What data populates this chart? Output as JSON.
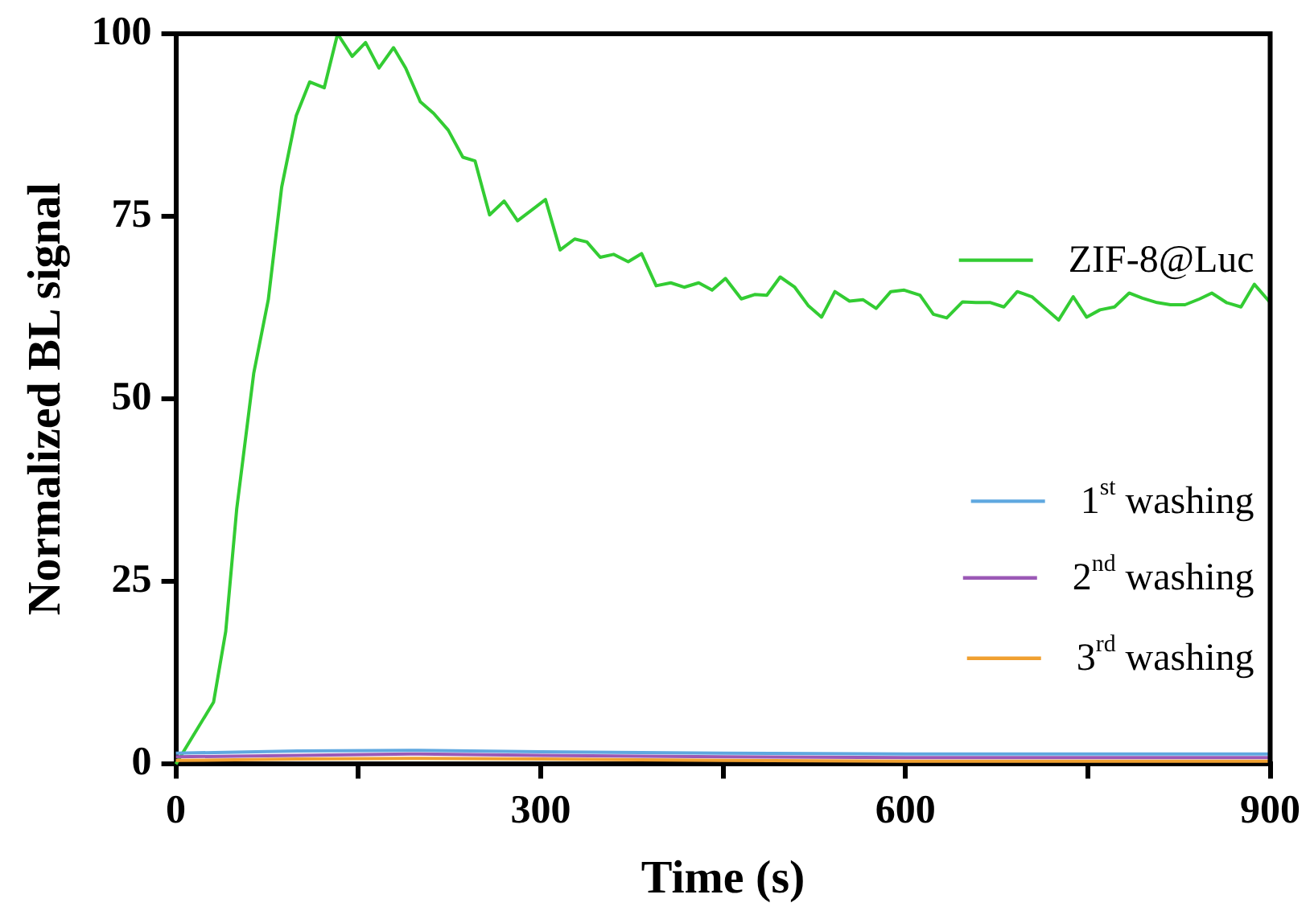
{
  "chart_data": {
    "type": "line",
    "xlabel": "Time (s)",
    "ylabel": "Normalized BL signal",
    "xlim": [
      0,
      900
    ],
    "ylim": [
      0,
      100
    ],
    "xticks": [
      0,
      {
        "value": 150,
        "label": null
      },
      300,
      {
        "value": 450,
        "label": null
      },
      600,
      {
        "value": 750,
        "label": null
      },
      900
    ],
    "yticks": [
      0,
      25,
      50,
      75,
      100
    ],
    "grid": false,
    "legend": "right",
    "marker": "none",
    "line_style": "solid",
    "series": [
      {
        "name": "ZIF-8@Luc",
        "color": "#33cc33",
        "x": [
          0,
          31,
          41,
          50,
          64,
          76,
          87,
          99,
          110,
          122,
          133,
          145,
          156,
          167,
          179,
          189,
          201,
          212,
          224,
          236,
          246,
          258,
          270,
          281,
          304,
          316,
          328,
          338,
          349,
          360,
          372,
          383,
          395,
          407,
          418,
          430,
          441,
          452,
          465,
          476,
          486,
          497,
          509,
          520,
          531,
          542,
          554,
          565,
          576,
          588,
          599,
          612,
          623,
          634,
          647,
          658,
          670,
          681,
          692,
          704,
          715,
          726,
          738,
          749,
          760,
          772,
          784,
          795,
          807,
          818,
          830,
          842,
          852,
          864,
          876,
          887,
          900
        ],
        "values": [
          0,
          8.5,
          18.2,
          34.9,
          53.5,
          63.6,
          79,
          88.8,
          93.4,
          92.6,
          100,
          96.9,
          98.8,
          95.3,
          98.1,
          95.3,
          90.7,
          89.1,
          86.8,
          83.1,
          82.6,
          75.2,
          77.1,
          74.4,
          77.3,
          70.4,
          71.9,
          71.5,
          69.4,
          69.8,
          68.8,
          69.9,
          65.5,
          65.9,
          65.3,
          65.9,
          64.9,
          66.5,
          63.7,
          64.3,
          64.2,
          66.7,
          65.3,
          62.8,
          61.2,
          64.7,
          63.4,
          63.6,
          62.4,
          64.7,
          64.9,
          64.2,
          61.6,
          61.1,
          63.3,
          63.2,
          63.2,
          62.6,
          64.7,
          64,
          62.4,
          60.8,
          64,
          61.2,
          62.2,
          62.6,
          64.5,
          63.8,
          63.2,
          62.9,
          62.9,
          63.7,
          64.5,
          63.2,
          62.6,
          65.7,
          63.2
        ]
      },
      {
        "name": "1$^{st}$ washing",
        "color": "#5fa8e0",
        "x": [
          0,
          100,
          200,
          300,
          450,
          600,
          750,
          900
        ],
        "values": [
          1.5,
          1.8,
          1.9,
          1.7,
          1.5,
          1.4,
          1.4,
          1.4
        ]
      },
      {
        "name": "2$^{nd}$ washing",
        "color": "#9b59b6",
        "x": [
          0,
          100,
          200,
          300,
          450,
          600,
          750,
          900
        ],
        "values": [
          1,
          1.2,
          1.4,
          1.2,
          1,
          0.9,
          0.9,
          0.9
        ]
      },
      {
        "name": "3$^{rd}$ washing",
        "color": "#f0a030",
        "x": [
          0,
          100,
          200,
          300,
          450,
          600,
          750,
          900
        ],
        "values": [
          0.5,
          0.7,
          0.8,
          0.7,
          0.5,
          0.4,
          0.4,
          0.4
        ]
      }
    ]
  }
}
